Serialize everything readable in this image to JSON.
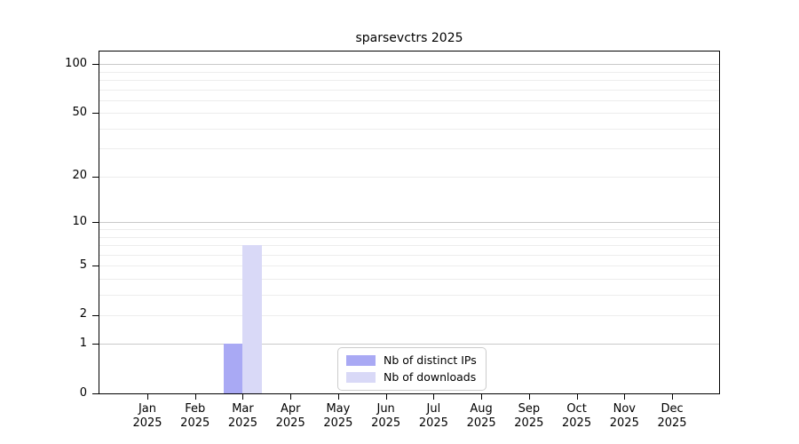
{
  "chart_data": {
    "type": "bar",
    "title": "sparsevctrs 2025",
    "categories": [
      {
        "month": "Jan",
        "year": "2025"
      },
      {
        "month": "Feb",
        "year": "2025"
      },
      {
        "month": "Mar",
        "year": "2025"
      },
      {
        "month": "Apr",
        "year": "2025"
      },
      {
        "month": "May",
        "year": "2025"
      },
      {
        "month": "Jun",
        "year": "2025"
      },
      {
        "month": "Jul",
        "year": "2025"
      },
      {
        "month": "Aug",
        "year": "2025"
      },
      {
        "month": "Sep",
        "year": "2025"
      },
      {
        "month": "Oct",
        "year": "2025"
      },
      {
        "month": "Nov",
        "year": "2025"
      },
      {
        "month": "Dec",
        "year": "2025"
      }
    ],
    "series": [
      {
        "name": "Nb of distinct IPs",
        "color": "#a9a9f4",
        "values": [
          0,
          0,
          1,
          0,
          0,
          0,
          0,
          0,
          0,
          0,
          0,
          0
        ]
      },
      {
        "name": "Nb of downloads",
        "color": "#d9d9f7",
        "values": [
          0,
          0,
          7,
          0,
          0,
          0,
          0,
          0,
          0,
          0,
          0,
          0
        ]
      }
    ],
    "xlabel": "",
    "ylabel": "",
    "yticks": [
      0,
      1,
      2,
      5,
      10,
      20,
      50,
      100
    ],
    "scale": "log1p",
    "ylim": [
      0,
      114
    ],
    "grid": {
      "major_values": [
        1,
        10,
        100
      ],
      "minor_values": [
        2,
        3,
        4,
        5,
        6,
        7,
        8,
        9,
        20,
        30,
        40,
        50,
        60,
        70,
        80,
        90
      ],
      "major_color": "#c9c9c9",
      "minor_color": "#ededed"
    },
    "legend": {
      "position": "lower center",
      "border_color": "#cccccc"
    }
  }
}
